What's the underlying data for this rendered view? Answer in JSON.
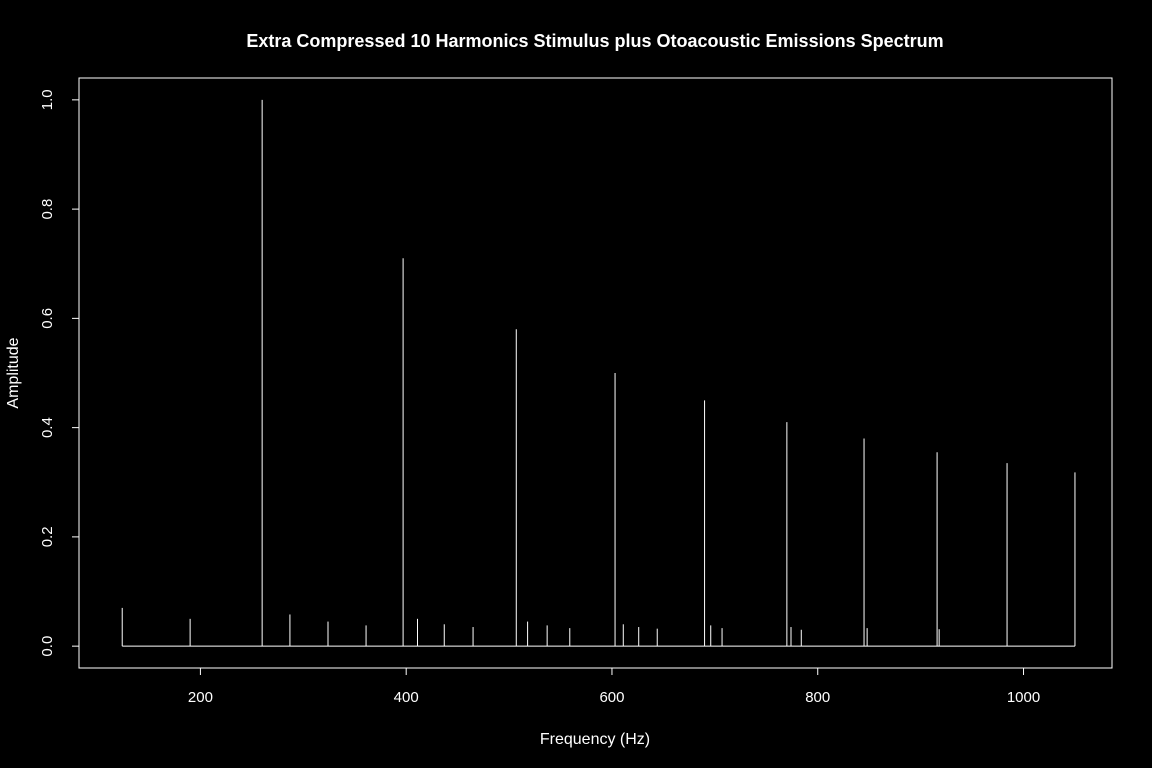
{
  "chart_data": {
    "type": "bar",
    "title": "Extra Compressed 10 Harmonics Stimulus plus Otoacoustic Emissions Spectrum",
    "xlabel": "Frequency (Hz)",
    "ylabel": "Amplitude",
    "xlim": [
      82,
      1086
    ],
    "ylim": [
      -0.04,
      1.04
    ],
    "x_ticks": [
      200,
      400,
      600,
      800,
      1000
    ],
    "y_ticks": [
      0.0,
      0.2,
      0.4,
      0.6,
      0.8,
      1.0
    ],
    "x_tick_labels": [
      "200",
      "400",
      "600",
      "800",
      "1000"
    ],
    "y_tick_labels": [
      "0.0",
      "0.2",
      "0.4",
      "0.6",
      "0.8",
      "1.0"
    ],
    "grid": false,
    "baseline": {
      "from": 124,
      "to": 1050,
      "value": 0
    },
    "series": [
      {
        "points": [
          {
            "x": 124,
            "y": 0.07
          },
          {
            "x": 190,
            "y": 0.05
          },
          {
            "x": 260,
            "y": 1.0
          },
          {
            "x": 287,
            "y": 0.058
          },
          {
            "x": 324,
            "y": 0.045
          },
          {
            "x": 361,
            "y": 0.038
          },
          {
            "x": 397,
            "y": 0.71
          },
          {
            "x": 411,
            "y": 0.05
          },
          {
            "x": 437,
            "y": 0.04
          },
          {
            "x": 465,
            "y": 0.035
          },
          {
            "x": 507,
            "y": 0.58
          },
          {
            "x": 518,
            "y": 0.045
          },
          {
            "x": 537,
            "y": 0.038
          },
          {
            "x": 559,
            "y": 0.033
          },
          {
            "x": 603,
            "y": 0.5
          },
          {
            "x": 611,
            "y": 0.04
          },
          {
            "x": 626,
            "y": 0.035
          },
          {
            "x": 644,
            "y": 0.032
          },
          {
            "x": 690,
            "y": 0.45
          },
          {
            "x": 696,
            "y": 0.038
          },
          {
            "x": 707,
            "y": 0.033
          },
          {
            "x": 770,
            "y": 0.41
          },
          {
            "x": 774,
            "y": 0.035
          },
          {
            "x": 784,
            "y": 0.03
          },
          {
            "x": 845,
            "y": 0.38
          },
          {
            "x": 848,
            "y": 0.033
          },
          {
            "x": 916,
            "y": 0.355
          },
          {
            "x": 918,
            "y": 0.031
          },
          {
            "x": 984,
            "y": 0.335
          },
          {
            "x": 1050,
            "y": 0.318
          }
        ]
      }
    ]
  }
}
